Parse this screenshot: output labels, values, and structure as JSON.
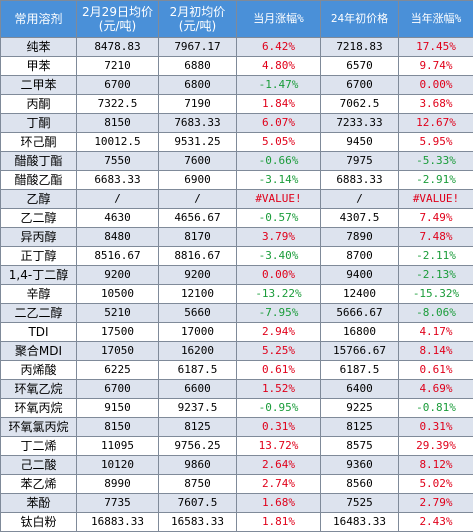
{
  "headers": {
    "name": "常用溶剂",
    "feb29": [
      "2月29日均价",
      "(元/吨)"
    ],
    "feb_start": [
      "2月初均价",
      "(元/吨)"
    ],
    "month_change": "当月涨幅%",
    "year_start": "24年初价格",
    "year_change": "当年涨幅%"
  },
  "colors": {
    "header_bg": "#4a90d8",
    "row_alt": "#dde3ee",
    "up": "#e0001a",
    "down": "#1a9c3a"
  },
  "rows": [
    {
      "name": "纯苯",
      "feb29": "8478.83",
      "feb_start": "7967.17",
      "month": "6.42%",
      "year_start": "7218.83",
      "year": "17.45%"
    },
    {
      "name": "甲苯",
      "feb29": "7210",
      "feb_start": "6880",
      "month": "4.80%",
      "year_start": "6570",
      "year": "9.74%"
    },
    {
      "name": "二甲苯",
      "feb29": "6700",
      "feb_start": "6800",
      "month": "-1.47%",
      "year_start": "6700",
      "year": "0.00%"
    },
    {
      "name": "丙酮",
      "feb29": "7322.5",
      "feb_start": "7190",
      "month": "1.84%",
      "year_start": "7062.5",
      "year": "3.68%"
    },
    {
      "name": "丁酮",
      "feb29": "8150",
      "feb_start": "7683.33",
      "month": "6.07%",
      "year_start": "7233.33",
      "year": "12.67%"
    },
    {
      "name": "环己酮",
      "feb29": "10012.5",
      "feb_start": "9531.25",
      "month": "5.05%",
      "year_start": "9450",
      "year": "5.95%"
    },
    {
      "name": "醋酸丁酯",
      "feb29": "7550",
      "feb_start": "7600",
      "month": "-0.66%",
      "year_start": "7975",
      "year": "-5.33%"
    },
    {
      "name": "醋酸乙酯",
      "feb29": "6683.33",
      "feb_start": "6900",
      "month": "-3.14%",
      "year_start": "6883.33",
      "year": "-2.91%"
    },
    {
      "name": "乙醇",
      "feb29": "/",
      "feb_start": "/",
      "month": "#VALUE!",
      "year_start": "/",
      "year": "#VALUE!"
    },
    {
      "name": "乙二醇",
      "feb29": "4630",
      "feb_start": "4656.67",
      "month": "-0.57%",
      "year_start": "4307.5",
      "year": "7.49%"
    },
    {
      "name": "异丙醇",
      "feb29": "8480",
      "feb_start": "8170",
      "month": "3.79%",
      "year_start": "7890",
      "year": "7.48%"
    },
    {
      "name": "正丁醇",
      "feb29": "8516.67",
      "feb_start": "8816.67",
      "month": "-3.40%",
      "year_start": "8700",
      "year": "-2.11%"
    },
    {
      "name": "1,4-丁二醇",
      "feb29": "9200",
      "feb_start": "9200",
      "month": "0.00%",
      "year_start": "9400",
      "year": "-2.13%"
    },
    {
      "name": "辛醇",
      "feb29": "10500",
      "feb_start": "12100",
      "month": "-13.22%",
      "year_start": "12400",
      "year": "-15.32%"
    },
    {
      "name": "二乙二醇",
      "feb29": "5210",
      "feb_start": "5660",
      "month": "-7.95%",
      "year_start": "5666.67",
      "year": "-8.06%"
    },
    {
      "name": "TDI",
      "feb29": "17500",
      "feb_start": "17000",
      "month": "2.94%",
      "year_start": "16800",
      "year": "4.17%"
    },
    {
      "name": "聚合MDI",
      "feb29": "17050",
      "feb_start": "16200",
      "month": "5.25%",
      "year_start": "15766.67",
      "year": "8.14%"
    },
    {
      "name": "丙烯酸",
      "feb29": "6225",
      "feb_start": "6187.5",
      "month": "0.61%",
      "year_start": "6187.5",
      "year": "0.61%"
    },
    {
      "name": "环氧乙烷",
      "feb29": "6700",
      "feb_start": "6600",
      "month": "1.52%",
      "year_start": "6400",
      "year": "4.69%"
    },
    {
      "name": "环氧丙烷",
      "feb29": "9150",
      "feb_start": "9237.5",
      "month": "-0.95%",
      "year_start": "9225",
      "year": "-0.81%"
    },
    {
      "name": "环氧氯丙烷",
      "feb29": "8150",
      "feb_start": "8125",
      "month": "0.31%",
      "year_start": "8125",
      "year": "0.31%"
    },
    {
      "name": "丁二烯",
      "feb29": "11095",
      "feb_start": "9756.25",
      "month": "13.72%",
      "year_start": "8575",
      "year": "29.39%"
    },
    {
      "name": "己二酸",
      "feb29": "10120",
      "feb_start": "9860",
      "month": "2.64%",
      "year_start": "9360",
      "year": "8.12%"
    },
    {
      "name": "苯乙烯",
      "feb29": "8990",
      "feb_start": "8750",
      "month": "2.74%",
      "year_start": "8560",
      "year": "5.02%"
    },
    {
      "name": "苯酚",
      "feb29": "7735",
      "feb_start": "7607.5",
      "month": "1.68%",
      "year_start": "7525",
      "year": "2.79%"
    },
    {
      "name": "钛白粉",
      "feb29": "16883.33",
      "feb_start": "16583.33",
      "month": "1.81%",
      "year_start": "16483.33",
      "year": "2.43%"
    }
  ]
}
